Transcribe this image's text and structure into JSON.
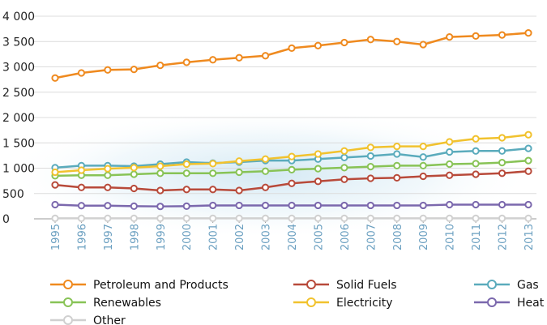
{
  "chart_data": {
    "type": "line",
    "x": [
      "1995",
      "1996",
      "1997",
      "1998",
      "1999",
      "2000",
      "2001",
      "2002",
      "2003",
      "2004",
      "2005",
      "2006",
      "2007",
      "2008",
      "2009",
      "2010",
      "2011",
      "2012",
      "2013"
    ],
    "ylim": [
      0,
      4000
    ],
    "yticks": [
      0,
      500,
      1000,
      1500,
      2000,
      2500,
      3000,
      3500,
      4000
    ],
    "ytick_labels": [
      "0",
      "500",
      "1 000",
      "1 500",
      "2 000",
      "2 500",
      "3 000",
      "3 500",
      "4 000"
    ],
    "grid": "horizontal",
    "legend_position": "bottom",
    "series": [
      {
        "name": "Petroleum and Products",
        "color": "#ef8a1f",
        "values": [
          2780,
          2880,
          2940,
          2950,
          3030,
          3090,
          3140,
          3180,
          3220,
          3370,
          3420,
          3480,
          3540,
          3500,
          3440,
          3590,
          3610,
          3630,
          3670
        ]
      },
      {
        "name": "Solid Fuels",
        "color": "#b84a3a",
        "values": [
          670,
          620,
          620,
          600,
          560,
          580,
          580,
          560,
          620,
          700,
          740,
          780,
          800,
          810,
          840,
          860,
          880,
          900,
          940
        ]
      },
      {
        "name": "Gas",
        "color": "#5aabbc",
        "values": [
          1010,
          1050,
          1050,
          1040,
          1080,
          1120,
          1100,
          1120,
          1150,
          1150,
          1180,
          1210,
          1240,
          1280,
          1220,
          1320,
          1340,
          1340,
          1390
        ]
      },
      {
        "name": "Renewables",
        "color": "#88c356",
        "values": [
          850,
          860,
          860,
          880,
          900,
          900,
          900,
          920,
          940,
          970,
          990,
          1010,
          1030,
          1050,
          1050,
          1080,
          1090,
          1110,
          1150
        ]
      },
      {
        "name": "Electricity",
        "color": "#f1c22e",
        "values": [
          920,
          960,
          990,
          1010,
          1040,
          1080,
          1090,
          1140,
          1180,
          1230,
          1280,
          1340,
          1410,
          1430,
          1430,
          1520,
          1580,
          1600,
          1660
        ]
      },
      {
        "name": "Heat",
        "color": "#7b68ad",
        "values": [
          280,
          260,
          260,
          250,
          245,
          250,
          265,
          265,
          265,
          265,
          265,
          265,
          265,
          265,
          265,
          280,
          280,
          280,
          280
        ]
      },
      {
        "name": "Other",
        "color": "#d0d0d0",
        "values": [
          10,
          10,
          10,
          10,
          10,
          10,
          10,
          10,
          10,
          10,
          10,
          10,
          10,
          10,
          10,
          10,
          10,
          10,
          10
        ]
      }
    ]
  }
}
